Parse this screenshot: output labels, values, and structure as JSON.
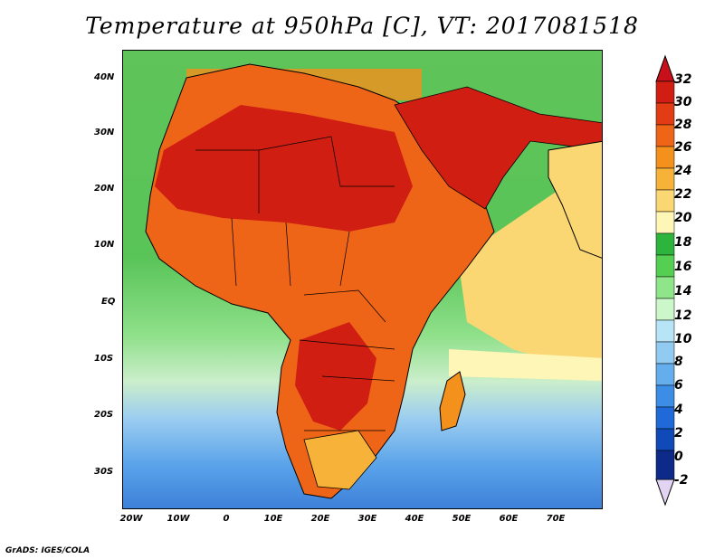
{
  "title": "Temperature at 950hPa [C], VT: 2017081518",
  "credit": "GrADS: IGES/COLA",
  "map": {
    "lon_range": [
      -22,
      80
    ],
    "lat_range": [
      -37,
      45
    ],
    "lat_labels": [
      {
        "lat": 40,
        "text": "40N"
      },
      {
        "lat": 30,
        "text": "30N"
      },
      {
        "lat": 20,
        "text": "20N"
      },
      {
        "lat": 10,
        "text": "10N"
      },
      {
        "lat": 0,
        "text": "EQ"
      },
      {
        "lat": -10,
        "text": "10S"
      },
      {
        "lat": -20,
        "text": "20S"
      },
      {
        "lat": -30,
        "text": "30S"
      }
    ],
    "lon_labels": [
      {
        "lon": -20,
        "text": "20W"
      },
      {
        "lon": -10,
        "text": "10W"
      },
      {
        "lon": 0,
        "text": "0"
      },
      {
        "lon": 10,
        "text": "10E"
      },
      {
        "lon": 20,
        "text": "20E"
      },
      {
        "lon": 30,
        "text": "30E"
      },
      {
        "lon": 40,
        "text": "40E"
      },
      {
        "lon": 50,
        "text": "50E"
      },
      {
        "lon": 60,
        "text": "60E"
      },
      {
        "lon": 70,
        "text": "70E"
      }
    ],
    "ocean_color": "#5fc45a",
    "land_outline_color": "#000000"
  },
  "colorbar": {
    "labels": [
      "32",
      "30",
      "28",
      "26",
      "24",
      "22",
      "20",
      "18",
      "16",
      "14",
      "12",
      "10",
      "8",
      "6",
      "4",
      "2",
      "0",
      "-2"
    ],
    "levels": [
      32,
      30,
      28,
      26,
      24,
      22,
      20,
      18,
      16,
      14,
      12,
      10,
      8,
      6,
      4,
      2,
      0,
      -2
    ],
    "top_arrow_color": "#c8101a",
    "bottom_arrow_color": "#e2d4f2",
    "colors": [
      "#d01f12",
      "#e23c14",
      "#ee6518",
      "#f4901c",
      "#f7b23a",
      "#fbd773",
      "#fef6b6",
      "#2db43c",
      "#55cf52",
      "#8fe68a",
      "#cbf7cb",
      "#b8e4f8",
      "#92cbf2",
      "#64aeee",
      "#3c8de6",
      "#1f6ad8",
      "#104ab8",
      "#0d2a88"
    ]
  }
}
